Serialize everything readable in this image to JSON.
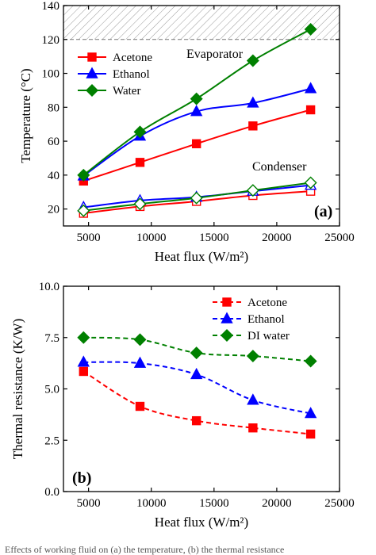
{
  "figure": {
    "caption": "Effects of working fluid on (a) the temperature, (b) the thermal resistance",
    "colors": {
      "acetone": "#ff0000",
      "ethanol": "#0000ff",
      "water": "#008000"
    }
  },
  "chart_data": [
    {
      "type": "line",
      "panel_label": "(a)",
      "xlabel": "Heat flux (W/m²)",
      "ylabel": "Temperature (°C)",
      "xlim": [
        3000,
        25000
      ],
      "ylim": [
        10,
        140
      ],
      "xticks": [
        5000,
        10000,
        15000,
        20000,
        25000
      ],
      "yticks": [
        20,
        40,
        60,
        80,
        100,
        120,
        140
      ],
      "x": [
        4600,
        9100,
        13600,
        18100,
        22700
      ],
      "hatched_band": [
        120,
        140
      ],
      "legend_position": "upper-left",
      "annotations": [
        "Evaporator",
        "Condenser"
      ],
      "series": [
        {
          "name": "Acetone",
          "color": "#ff0000",
          "marker": "square",
          "values": [
            36.5,
            47.5,
            58.5,
            69,
            78.5
          ]
        },
        {
          "name": "Ethanol",
          "color": "#0000ff",
          "marker": "triangle",
          "values": [
            39.5,
            63,
            77.5,
            82.5,
            91
          ]
        },
        {
          "name": "Water",
          "color": "#008000",
          "marker": "diamond",
          "values": [
            40,
            65.5,
            85,
            107.5,
            126
          ]
        },
        {
          "name": "",
          "color": "#ff0000",
          "marker": "square-open",
          "values": [
            17.5,
            21.5,
            24.5,
            28,
            30.5
          ]
        },
        {
          "name": "",
          "color": "#0000ff",
          "marker": "triangle-open",
          "values": [
            21,
            25,
            27,
            30.5,
            34
          ]
        },
        {
          "name": "",
          "color": "#008000",
          "marker": "diamond-open",
          "values": [
            19,
            23,
            26.5,
            31,
            35.5
          ]
        }
      ]
    },
    {
      "type": "line",
      "panel_label": "(b)",
      "xlabel": "Heat flux (W/m²)",
      "ylabel": "Thermal resistance (K/W)",
      "xlim": [
        3000,
        25000
      ],
      "ylim": [
        0,
        10
      ],
      "xticks": [
        5000,
        10000,
        15000,
        20000,
        25000
      ],
      "yticks": [
        0.0,
        2.5,
        5.0,
        7.5,
        10.0
      ],
      "x": [
        4600,
        9100,
        13600,
        18100,
        22700
      ],
      "legend_position": "upper-right",
      "series": [
        {
          "name": "Acetone",
          "color": "#ff0000",
          "marker": "square",
          "line": "dashed",
          "values": [
            5.85,
            4.15,
            3.45,
            3.1,
            2.8
          ]
        },
        {
          "name": "Ethanol",
          "color": "#0000ff",
          "marker": "triangle",
          "line": "dashed",
          "values": [
            6.3,
            6.25,
            5.7,
            4.45,
            3.8
          ]
        },
        {
          "name": "DI water",
          "color": "#008000",
          "marker": "diamond",
          "line": "dashed",
          "values": [
            7.5,
            7.4,
            6.75,
            6.6,
            6.35
          ]
        }
      ]
    }
  ]
}
